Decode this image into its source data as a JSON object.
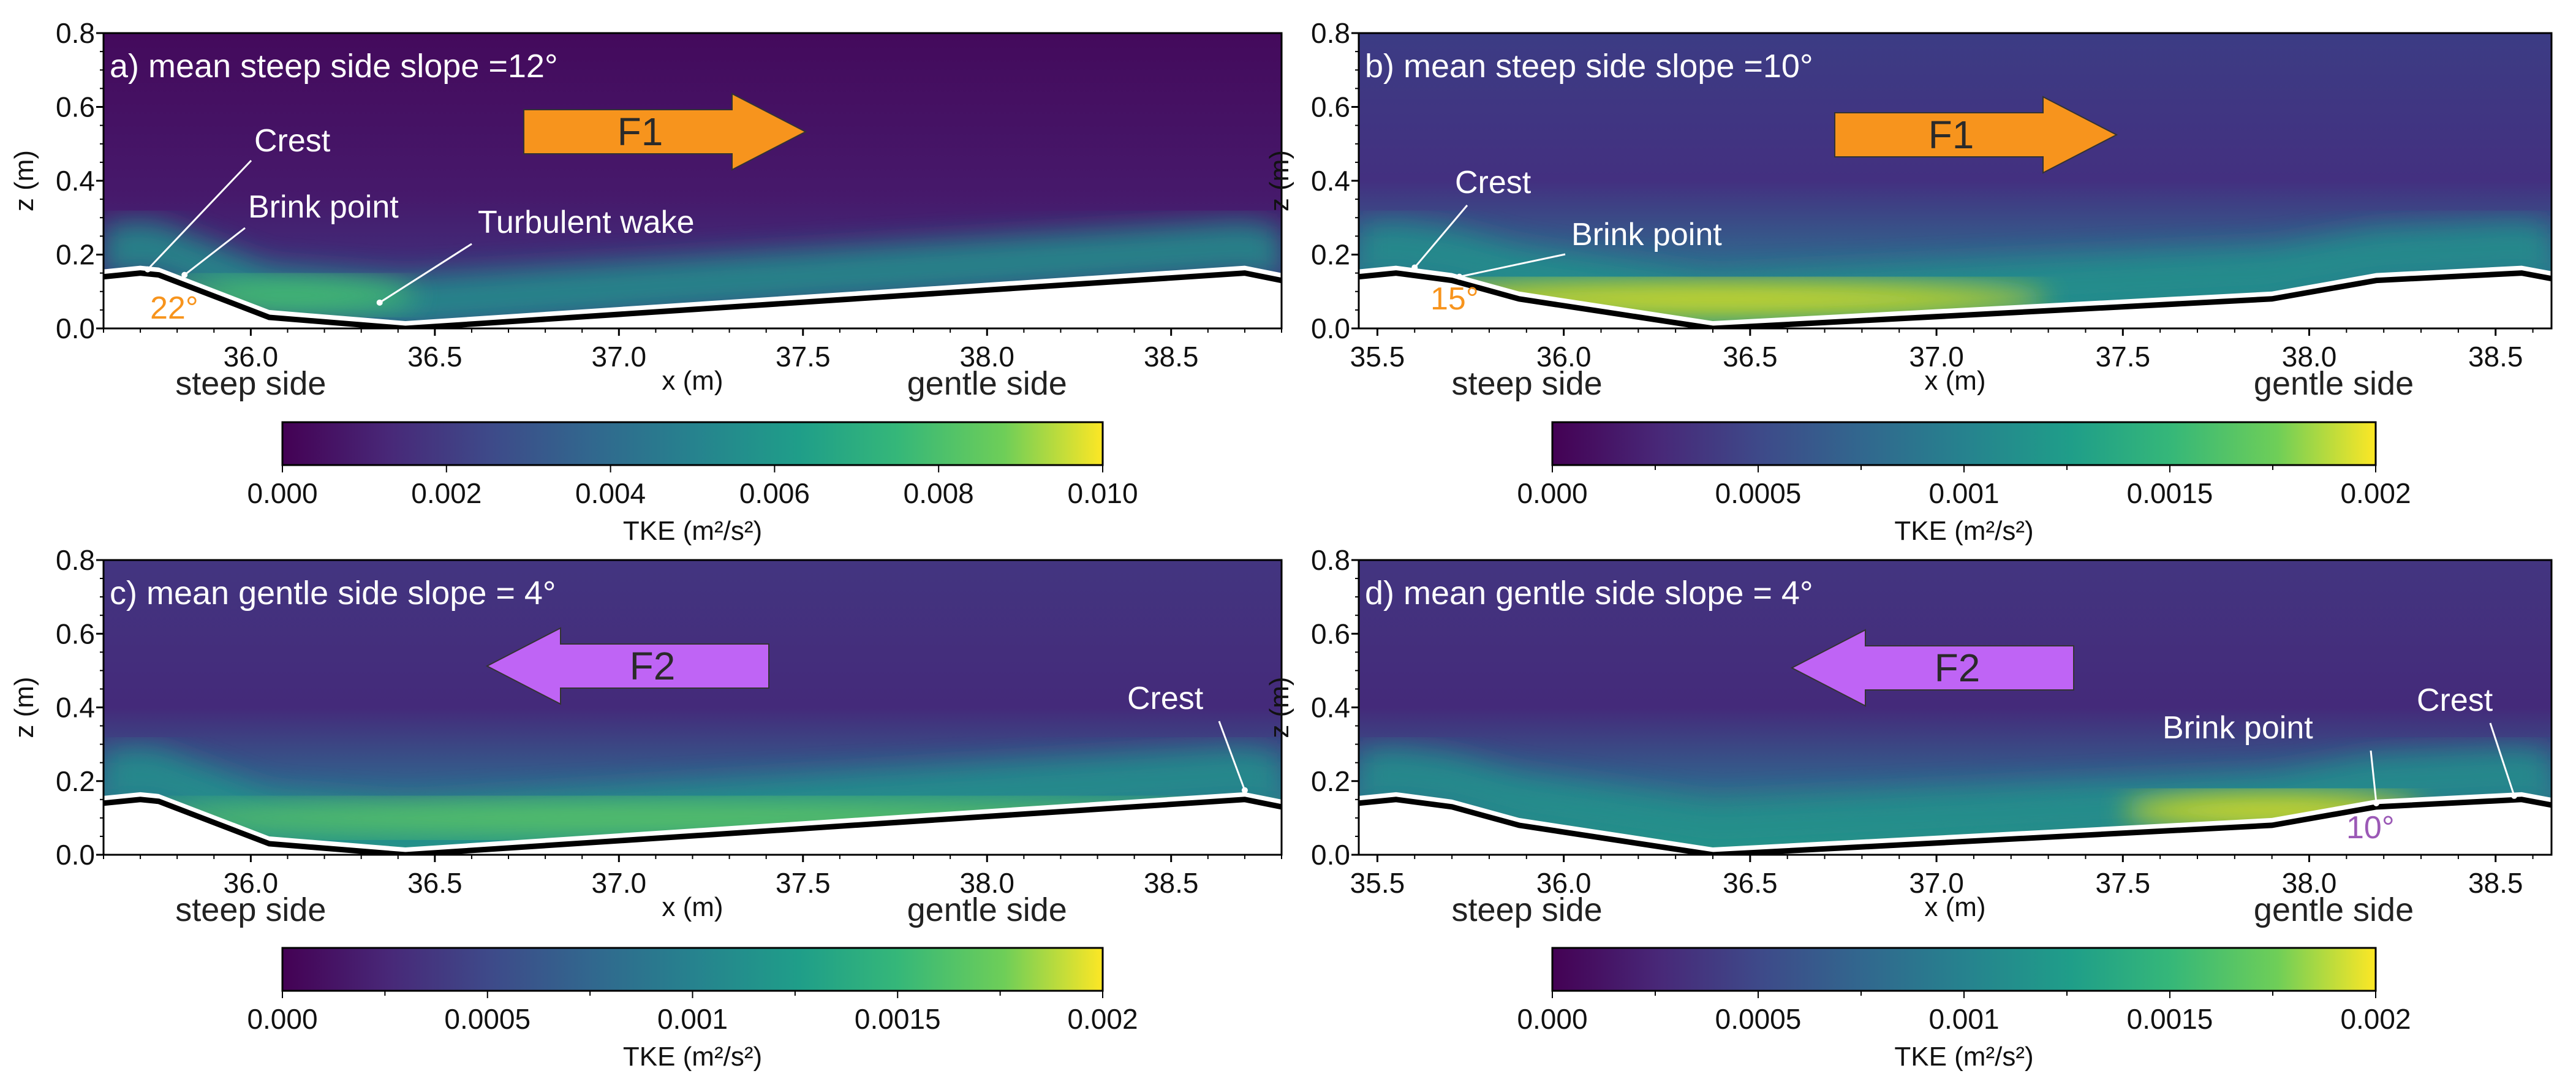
{
  "figure": {
    "description": "Four panels of TKE fields over a bedform with colorbars"
  },
  "chart_data": [
    {
      "type": "heatmap",
      "id": "a",
      "title": "a) mean steep side slope =12°",
      "xlabel": "x (m)",
      "ylabel": "z (m)",
      "xlim": [
        35.6,
        38.8
      ],
      "ylim": [
        0.0,
        0.8
      ],
      "xticks": [
        "36.0",
        "36.5",
        "37.0",
        "37.5",
        "38.0",
        "38.5"
      ],
      "xtick_values": [
        36.0,
        36.5,
        37.0,
        37.5,
        38.0,
        38.5
      ],
      "yticks": [
        "0.0",
        "0.2",
        "0.4",
        "0.6",
        "0.8"
      ],
      "ytick_values": [
        0.0,
        0.2,
        0.4,
        0.6,
        0.8
      ],
      "side_labels": {
        "left": "steep side",
        "right": "gentle side"
      },
      "bed_profile": {
        "x": [
          35.6,
          35.7,
          35.75,
          36.05,
          36.42,
          38.7,
          38.8
        ],
        "z": [
          0.14,
          0.15,
          0.145,
          0.03,
          0.0,
          0.15,
          0.13
        ]
      },
      "high_tke_zone": {
        "x_start": 35.75,
        "x_end": 36.45,
        "z_center": 0.07,
        "peak_fraction": 0.7
      },
      "flow_arrow": {
        "label": "F1",
        "direction": "right",
        "color": "#f7941d"
      },
      "annotations": [
        {
          "text": "Crest",
          "color": "#ffffff"
        },
        {
          "text": "Brink point",
          "color": "#ffffff"
        },
        {
          "text": "Turbulent wake",
          "color": "#ffffff"
        },
        {
          "text": "22°",
          "color": "#f7941d"
        }
      ],
      "colorbar": {
        "label": "TKE (m²/s²)",
        "min": 0.0,
        "max": 0.01,
        "ticks": [
          "0.000",
          "0.002",
          "0.004",
          "0.006",
          "0.008",
          "0.010"
        ],
        "colormap": "viridis"
      }
    },
    {
      "type": "heatmap",
      "id": "b",
      "title": "b) mean steep side slope =10°",
      "xlabel": "x (m)",
      "ylabel": "z (m)",
      "xlim": [
        35.45,
        38.65
      ],
      "ylim": [
        0.0,
        0.8
      ],
      "xticks": [
        "35.5",
        "36.0",
        "36.5",
        "37.0",
        "37.5",
        "38.0",
        "38.5"
      ],
      "xtick_values": [
        35.5,
        36.0,
        36.5,
        37.0,
        37.5,
        38.0,
        38.5
      ],
      "yticks": [
        "0.0",
        "0.2",
        "0.4",
        "0.6",
        "0.8"
      ],
      "ytick_values": [
        0.0,
        0.2,
        0.4,
        0.6,
        0.8
      ],
      "side_labels": {
        "left": "steep side",
        "right": "gentle side"
      },
      "bed_profile": {
        "x": [
          35.45,
          35.55,
          35.7,
          35.88,
          36.4,
          37.9,
          38.18,
          38.57,
          38.65
        ],
        "z": [
          0.14,
          0.15,
          0.13,
          0.08,
          0.0,
          0.08,
          0.13,
          0.15,
          0.135
        ]
      },
      "high_tke_zone": {
        "x_start": 35.5,
        "x_end": 37.3,
        "z_center": 0.06,
        "peak_fraction": 1.0
      },
      "flow_arrow": {
        "label": "F1",
        "direction": "right",
        "color": "#f7941d"
      },
      "annotations": [
        {
          "text": "Crest",
          "color": "#ffffff"
        },
        {
          "text": "Brink point",
          "color": "#ffffff"
        },
        {
          "text": "15°",
          "color": "#f7941d"
        }
      ],
      "colorbar": {
        "label": "TKE (m²/s²)",
        "min": 0.0,
        "max": 0.002,
        "ticks": [
          "0.000",
          "0.0005",
          "0.001",
          "0.0015",
          "0.002"
        ],
        "colormap": "viridis"
      }
    },
    {
      "type": "heatmap",
      "id": "c",
      "title": "c) mean gentle side slope = 4°",
      "xlabel": "x (m)",
      "ylabel": "z (m)",
      "xlim": [
        35.6,
        38.8
      ],
      "ylim": [
        0.0,
        0.8
      ],
      "xticks": [
        "36.0",
        "36.5",
        "37.0",
        "37.5",
        "38.0",
        "38.5"
      ],
      "xtick_values": [
        36.0,
        36.5,
        37.0,
        37.5,
        38.0,
        38.5
      ],
      "yticks": [
        "0.0",
        "0.2",
        "0.4",
        "0.6",
        "0.8"
      ],
      "ytick_values": [
        0.0,
        0.2,
        0.4,
        0.6,
        0.8
      ],
      "side_labels": {
        "left": "steep side",
        "right": "gentle side"
      },
      "bed_profile": {
        "x": [
          35.6,
          35.7,
          35.75,
          36.05,
          36.42,
          38.7,
          38.8
        ],
        "z": [
          0.14,
          0.15,
          0.145,
          0.03,
          0.0,
          0.15,
          0.13
        ]
      },
      "high_tke_zone": {
        "x_start": 35.6,
        "x_end": 38.8,
        "z_center": 0.08,
        "peak_fraction": 0.8
      },
      "flow_arrow": {
        "label": "F2",
        "direction": "left",
        "color": "#bf64f5"
      },
      "annotations": [
        {
          "text": "Crest",
          "color": "#ffffff"
        }
      ],
      "colorbar": {
        "label": "TKE (m²/s²)",
        "min": 0.0,
        "max": 0.002,
        "ticks": [
          "0.000",
          "0.0005",
          "0.001",
          "0.0015",
          "0.002"
        ],
        "colormap": "viridis"
      }
    },
    {
      "type": "heatmap",
      "id": "d",
      "title": "d) mean gentle side slope = 4°",
      "xlabel": "x (m)",
      "ylabel": "z (m)",
      "xlim": [
        35.45,
        38.65
      ],
      "ylim": [
        0.0,
        0.8
      ],
      "xticks": [
        "35.5",
        "36.0",
        "36.5",
        "37.0",
        "37.5",
        "38.0",
        "38.5"
      ],
      "xtick_values": [
        35.5,
        36.0,
        36.5,
        37.0,
        37.5,
        38.0,
        38.5
      ],
      "yticks": [
        "0.0",
        "0.2",
        "0.4",
        "0.6",
        "0.8"
      ],
      "ytick_values": [
        0.0,
        0.2,
        0.4,
        0.6,
        0.8
      ],
      "side_labels": {
        "left": "steep side",
        "right": "gentle side"
      },
      "bed_profile": {
        "x": [
          35.45,
          35.55,
          35.7,
          35.88,
          36.4,
          37.9,
          38.18,
          38.57,
          38.65
        ],
        "z": [
          0.14,
          0.15,
          0.13,
          0.08,
          0.0,
          0.08,
          0.13,
          0.15,
          0.135
        ]
      },
      "high_tke_zone": {
        "x_start": 37.5,
        "x_end": 38.3,
        "z_center": 0.1,
        "peak_fraction": 0.95
      },
      "flow_arrow": {
        "label": "F2",
        "direction": "left",
        "color": "#bf64f5"
      },
      "annotations": [
        {
          "text": "Brink point",
          "color": "#ffffff"
        },
        {
          "text": "Crest",
          "color": "#ffffff"
        },
        {
          "text": "10°",
          "color": "#9b59b6"
        }
      ],
      "colorbar": {
        "label": "TKE (m²/s²)",
        "min": 0.0,
        "max": 0.002,
        "ticks": [
          "0.000",
          "0.0005",
          "0.001",
          "0.0015",
          "0.002"
        ],
        "colormap": "viridis"
      }
    }
  ]
}
